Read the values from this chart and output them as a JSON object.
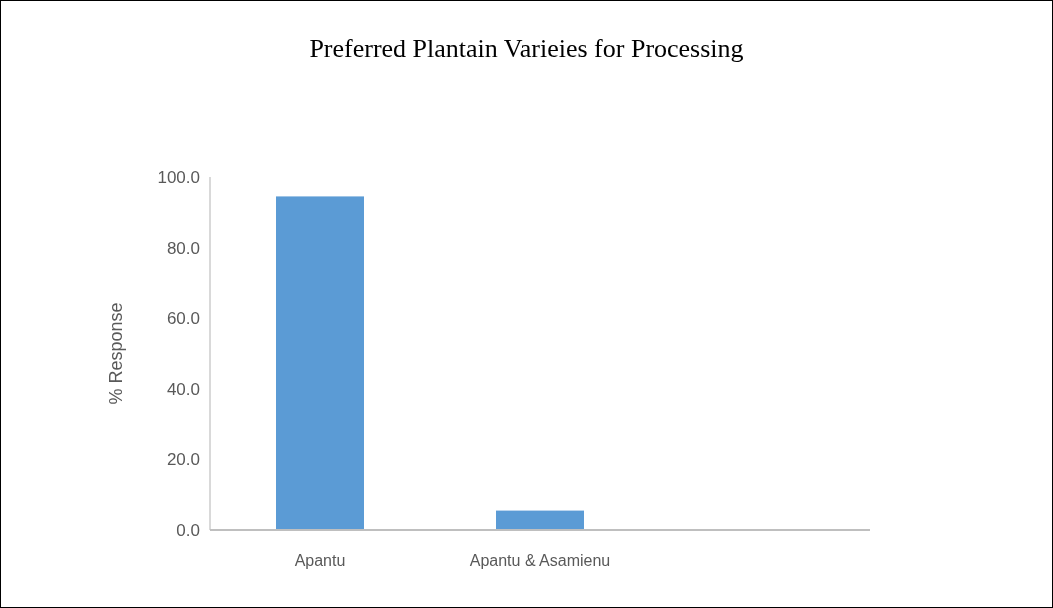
{
  "chart_data": {
    "type": "bar",
    "title": "Preferred Plantain Varieies for Processing",
    "ylabel": "% Response",
    "categories": [
      "Apantu",
      "Apantu & Asamienu",
      null
    ],
    "values": [
      94.5,
      5.5,
      null
    ],
    "color": "#5b9bd5",
    "ylim": [
      0,
      100
    ],
    "yticks": [
      {
        "value": 0,
        "label": "0.0"
      },
      {
        "value": 20,
        "label": "20.0"
      },
      {
        "value": 40,
        "label": "40.0"
      },
      {
        "value": 60,
        "label": "60.0"
      },
      {
        "value": 80,
        "label": "80.0"
      },
      {
        "value": 100,
        "label": "100.0"
      }
    ]
  }
}
